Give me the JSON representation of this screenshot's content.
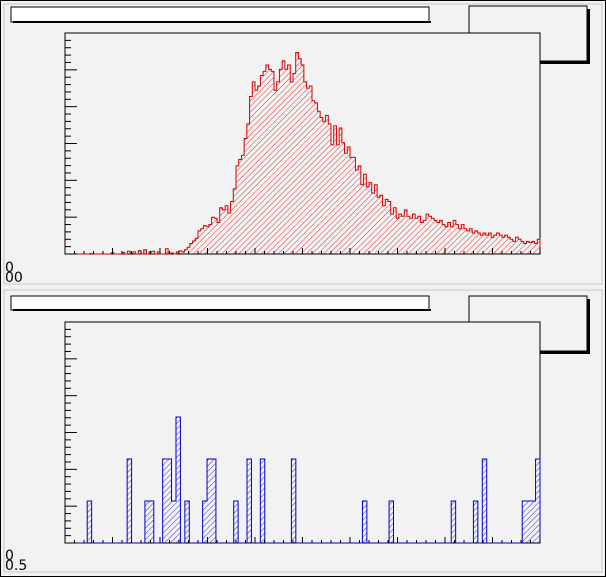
{
  "canvas_background": "#f2f2f2",
  "chart_data": [
    {
      "type": "bar",
      "histogram": true,
      "fill_pattern": "hatched",
      "line_color": "#d40000",
      "fill_color": "#d40000",
      "title": "",
      "stats_box": "",
      "xlim": [
        0,
        100
      ],
      "ylim": [
        0,
        1
      ],
      "y_tick_labels": [
        "0",
        "00"
      ],
      "values": [
        0,
        0,
        0,
        0,
        0,
        0,
        0,
        0,
        0,
        0.002,
        0,
        0,
        0,
        0,
        0,
        0,
        0,
        0.006,
        0,
        0,
        0,
        0.008,
        0,
        0.013,
        0.003,
        0.01,
        0,
        0.016,
        0,
        0.02,
        0,
        0.01,
        0.013,
        0,
        0.01,
        0,
        0,
        0.025,
        0,
        0.005,
        0,
        0.01,
        0.015,
        0.01,
        0.02,
        0.032,
        0.05,
        0.062,
        0.075,
        0.11,
        0.12,
        0.135,
        0.13,
        0.14,
        0.175,
        0.17,
        0.15,
        0.22,
        0.21,
        0.23,
        0.195,
        0.25,
        0.31,
        0.42,
        0.45,
        0.47,
        0.55,
        0.62,
        0.75,
        0.82,
        0.78,
        0.8,
        0.85,
        0.87,
        0.9,
        0.88,
        0.87,
        0.78,
        0.82,
        0.88,
        0.92,
        0.88,
        0.9,
        0.82,
        0.86,
        0.96,
        0.93,
        0.9,
        0.82,
        0.79,
        0.8,
        0.73,
        0.72,
        0.68,
        0.65,
        0.63,
        0.66,
        0.62,
        0.52,
        0.61,
        0.52,
        0.6,
        0.53,
        0.48,
        0.51,
        0.46,
        0.46,
        0.4,
        0.42,
        0.33,
        0.38,
        0.32,
        0.34,
        0.29,
        0.33,
        0.27,
        0.28,
        0.23,
        0.26,
        0.25,
        0.19,
        0.22,
        0.17,
        0.19,
        0.18,
        0.21,
        0.18,
        0.17,
        0.19,
        0.17,
        0.18,
        0.15,
        0.16,
        0.19,
        0.18,
        0.17,
        0.16,
        0.15,
        0.16,
        0.14,
        0.13,
        0.15,
        0.13,
        0.16,
        0.14,
        0.12,
        0.14,
        0.12,
        0.11,
        0.12,
        0.1,
        0.11,
        0.1,
        0.09,
        0.1,
        0.09,
        0.1,
        0.08,
        0.09,
        0.1,
        0.09,
        0.08,
        0.09,
        0.08,
        0.07,
        0.06,
        0.08,
        0.07,
        0.06,
        0.05,
        0.06,
        0.055,
        0.06,
        0.05,
        0.07
      ]
    },
    {
      "type": "bar",
      "histogram": true,
      "fill_pattern": "hatched",
      "line_color": "#0000cc",
      "fill_color": "#0000cc",
      "title": "",
      "stats_box": "",
      "xlim": [
        0,
        100
      ],
      "ylim": [
        0,
        1
      ],
      "y_tick_labels": [
        "0",
        "0.5"
      ],
      "values": [
        0,
        0,
        0,
        0,
        0,
        0.2,
        0,
        0,
        0,
        0,
        0,
        0,
        0,
        0,
        0.4,
        0,
        0,
        0,
        0.2,
        0.2,
        0,
        0,
        0.4,
        0.4,
        0.2,
        0.6,
        0,
        0.2,
        0,
        0,
        0,
        0.2,
        0.4,
        0.4,
        0,
        0,
        0,
        0,
        0.2,
        0,
        0,
        0.4,
        0,
        0,
        0.4,
        0,
        0,
        0,
        0,
        0,
        0,
        0.4,
        0,
        0,
        0,
        0,
        0,
        0,
        0,
        0,
        0,
        0,
        0,
        0,
        0,
        0,
        0,
        0.2,
        0,
        0,
        0,
        0,
        0,
        0.2,
        0,
        0,
        0,
        0,
        0,
        0,
        0,
        0,
        0,
        0,
        0,
        0,
        0,
        0.2,
        0,
        0,
        0,
        0,
        0.2,
        0,
        0.4,
        0,
        0,
        0,
        0,
        0,
        0,
        0,
        0,
        0.2,
        0.2,
        0.2,
        0.4
      ]
    }
  ]
}
